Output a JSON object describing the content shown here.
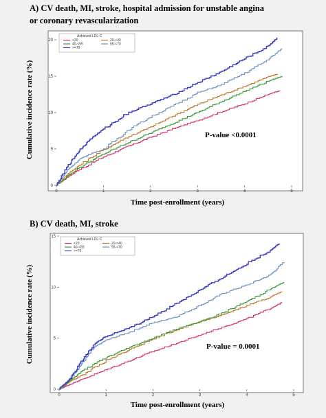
{
  "chart_data": [
    {
      "type": "line",
      "title": "A) CV death, MI, stroke, hospital admission for unstable angina",
      "subtitle": "or coronary revascularization",
      "xlabel": "Time post-enrollment (years)",
      "ylabel": "Cumulative incidence rate (%)",
      "xlim": [
        0,
        5
      ],
      "ylim": [
        0,
        20
      ],
      "xticks": [
        "0",
        "1",
        "2",
        "3",
        "4",
        "5"
      ],
      "yticks": [
        "0",
        "5",
        "10",
        "15",
        "20"
      ],
      "legend_title": "Achieved LDL-C",
      "legend_position": "top-left",
      "annotation": "P-value <0.0001",
      "series": [
        {
          "name": "<20",
          "color": "#d6336c",
          "x": [
            0,
            0.25,
            0.5,
            1,
            1.5,
            2,
            2.5,
            3,
            3.5,
            4,
            4.5,
            4.75
          ],
          "y": [
            0,
            1.2,
            2.2,
            3.9,
            5.3,
            6.6,
            7.8,
            8.9,
            10.1,
            11.2,
            12.5,
            13
          ]
        },
        {
          "name": "20-<40",
          "color": "#c0782a",
          "x": [
            0,
            0.25,
            0.5,
            1,
            1.5,
            2,
            2.5,
            3,
            3.5,
            4,
            4.5,
            4.7
          ],
          "y": [
            0,
            1.6,
            2.8,
            4.9,
            6.6,
            8.0,
            9.6,
            11.1,
            12.4,
            13.6,
            14.9,
            15.3
          ]
        },
        {
          "name": "40-<55",
          "color": "#3a9a3a",
          "x": [
            0,
            0.25,
            0.5,
            1,
            1.5,
            2,
            2.5,
            3,
            3.5,
            4,
            4.5,
            4.8
          ],
          "y": [
            0,
            1.3,
            2.5,
            4.3,
            5.8,
            7.2,
            8.6,
            10.0,
            11.5,
            12.9,
            14.3,
            15
          ]
        },
        {
          "name": "55-<70",
          "color": "#6b93bf",
          "x": [
            0,
            0.25,
            0.5,
            0.75,
            1,
            1.5,
            2,
            2.5,
            3,
            3.5,
            4,
            4.5,
            4.8
          ],
          "y": [
            0,
            2.2,
            3.6,
            4.4,
            4.9,
            7.5,
            9.4,
            11.0,
            12.7,
            13.8,
            15.4,
            17.3,
            18.8
          ]
        },
        {
          "name": ">=70",
          "color": "#3c3cc2",
          "x": [
            0,
            0.25,
            0.5,
            0.75,
            1,
            1.5,
            2,
            2.5,
            3,
            3.5,
            4,
            4.5,
            4.7
          ],
          "y": [
            0,
            2.7,
            4.9,
            6.5,
            7.7,
            9.9,
            11.2,
            12.5,
            14.1,
            15.6,
            17.4,
            19.1,
            20.3
          ]
        }
      ]
    },
    {
      "type": "line",
      "title": "B) CV death, MI, stroke",
      "xlabel": "Time post-enrollment (years)",
      "ylabel": "Cumulative incidence rate (%)",
      "xlim": [
        0,
        5
      ],
      "ylim": [
        0,
        15
      ],
      "xticks": [
        "0",
        "1",
        "2",
        "3",
        "4",
        "5"
      ],
      "yticks": [
        "0",
        "5",
        "10",
        "15"
      ],
      "legend_title": "Achieved LDL-C",
      "legend_position": "top-left",
      "annotation": "P-value = 0.0001",
      "series": [
        {
          "name": "<20",
          "color": "#d6336c",
          "x": [
            0,
            0.25,
            0.5,
            1,
            1.5,
            2,
            2.5,
            3,
            3.5,
            4,
            4.5,
            4.75
          ],
          "y": [
            0,
            0.5,
            1.0,
            1.9,
            2.8,
            3.7,
            4.5,
            5.3,
            6.1,
            6.9,
            7.9,
            8.5
          ]
        },
        {
          "name": "20-<40",
          "color": "#c0782a",
          "x": [
            0,
            0.25,
            0.5,
            1,
            1.5,
            2,
            2.5,
            3,
            3.5,
            4,
            4.5,
            4.75
          ],
          "y": [
            0,
            0.8,
            1.4,
            2.8,
            3.9,
            4.9,
            5.8,
            6.6,
            7.3,
            8.2,
            9.0,
            9.6
          ]
        },
        {
          "name": "40-<55",
          "color": "#3a9a3a",
          "x": [
            0,
            0.25,
            0.5,
            1,
            1.5,
            2,
            2.5,
            3,
            3.5,
            4,
            4.5,
            4.8
          ],
          "y": [
            0,
            0.9,
            1.8,
            3.1,
            4.1,
            5.0,
            5.9,
            6.6,
            7.5,
            8.6,
            9.8,
            10.5
          ]
        },
        {
          "name": "55-<70",
          "color": "#6b93bf",
          "x": [
            0,
            0.25,
            0.5,
            0.75,
            1,
            1.5,
            2,
            2.5,
            3,
            3.5,
            4,
            4.5,
            4.8
          ],
          "y": [
            0,
            1.1,
            2.6,
            4.1,
            4.8,
            5.6,
            6.5,
            7.1,
            8.2,
            9.4,
            10.2,
            11.2,
            12.5
          ]
        },
        {
          "name": ">=70",
          "color": "#3c3cc2",
          "x": [
            0,
            0.25,
            0.5,
            0.75,
            1,
            1.5,
            2,
            2.5,
            3,
            3.5,
            4,
            4.5,
            4.7
          ],
          "y": [
            0,
            1.1,
            2.9,
            4.4,
            5.2,
            6.0,
            7.1,
            8.4,
            9.7,
            11.0,
            12.3,
            13.6,
            14.3
          ]
        }
      ]
    }
  ]
}
